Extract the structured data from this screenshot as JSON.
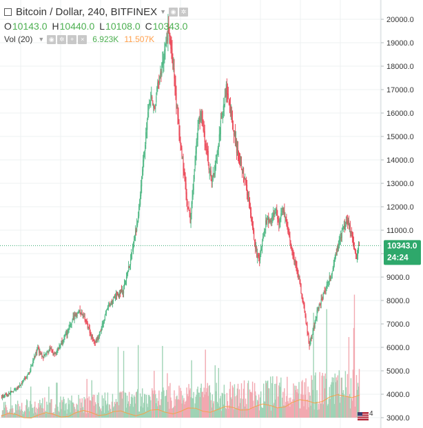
{
  "header": {
    "title": "Bitcoin / Dollar, 240, BITFINEX",
    "ohlc": [
      {
        "key": "O",
        "value": "10143.0"
      },
      {
        "key": "H",
        "value": "10440.0"
      },
      {
        "key": "L",
        "value": "10108.0"
      },
      {
        "key": "C",
        "value": "10343.0"
      }
    ],
    "volume_label": "Vol (20)",
    "volume_value": "6.923K",
    "volume_ma_value": "11.507K"
  },
  "price_axis": {
    "tick_labels": [
      "20000.0",
      "19000.0",
      "18000.0",
      "17000.0",
      "16000.0",
      "15000.0",
      "14000.0",
      "13000.0",
      "12000.0",
      "11000.0",
      "10000.0",
      "9000.0",
      "8000.0",
      "7000.0",
      "6000.0",
      "5000.0",
      "4000.0",
      "3000.0"
    ],
    "last_price_label": "10343.0",
    "countdown_label": "24:24"
  },
  "events_badge": "4",
  "colors": {
    "up": "#53b987",
    "down": "#eb4d5c",
    "vol_up": "#9fd3b5",
    "vol_down": "#f2a8b0",
    "vol_ma": "#f5a04a",
    "grid": "#eef0f2",
    "price_badge": "#2ea86b"
  },
  "chart_data": {
    "type": "candlestick",
    "symbol": "BTCUSD",
    "interval": "240",
    "exchange": "BITFINEX",
    "ylim": [
      3000,
      20000
    ],
    "last_close": 10343.0,
    "closes": [
      3860,
      3920,
      3980,
      4050,
      4120,
      4200,
      4300,
      4450,
      4600,
      4750,
      4950,
      5300,
      5700,
      5950,
      5700,
      5600,
      5750,
      5900,
      5850,
      5780,
      5900,
      6100,
      6350,
      6500,
      6700,
      7000,
      7300,
      7450,
      7550,
      7400,
      7250,
      6900,
      6600,
      6300,
      6250,
      6500,
      6850,
      7200,
      7600,
      7800,
      8000,
      8150,
      8200,
      8300,
      8500,
      9000,
      9500,
      10100,
      10700,
      11400,
      12400,
      13800,
      15200,
      16300,
      16600,
      16200,
      17000,
      17400,
      18200,
      19000,
      19600,
      18800,
      17800,
      16400,
      15200,
      14200,
      13200,
      12200,
      11500,
      12800,
      14400,
      15600,
      16000,
      15200,
      14300,
      13500,
      13200,
      13700,
      14600,
      15500,
      16300,
      17000,
      16600,
      15800,
      15000,
      14300,
      13900,
      13500,
      13000,
      12300,
      11600,
      10700,
      10000,
      9800,
      10400,
      11200,
      11500,
      11300,
      11700,
      11800,
      11300,
      11900,
      11700,
      11100,
      10500,
      10000,
      9500,
      9000,
      8400,
      7700,
      6900,
      6100,
      6500,
      7100,
      7600,
      7900,
      8200,
      8500,
      8800,
      9200,
      9700,
      10200,
      10600,
      11000,
      11200,
      11400,
      10900,
      10300,
      9800,
      10343
    ],
    "volume_ma_points": [
      820,
      800,
      860,
      920,
      1000,
      1050,
      1150,
      1200,
      1400,
      1600,
      1900,
      2200,
      2400,
      2300,
      2200,
      2100,
      2050,
      2100,
      2250,
      2400,
      2600,
      2800,
      3000,
      3150,
      3300,
      3500,
      3700,
      3800,
      3900,
      3950,
      4100,
      4300,
      4600,
      4900,
      5100,
      5300,
      5500,
      5800,
      6200,
      6800,
      7400,
      8000,
      8300,
      8600,
      9200,
      9900,
      10500,
      11000,
      11507
    ]
  }
}
